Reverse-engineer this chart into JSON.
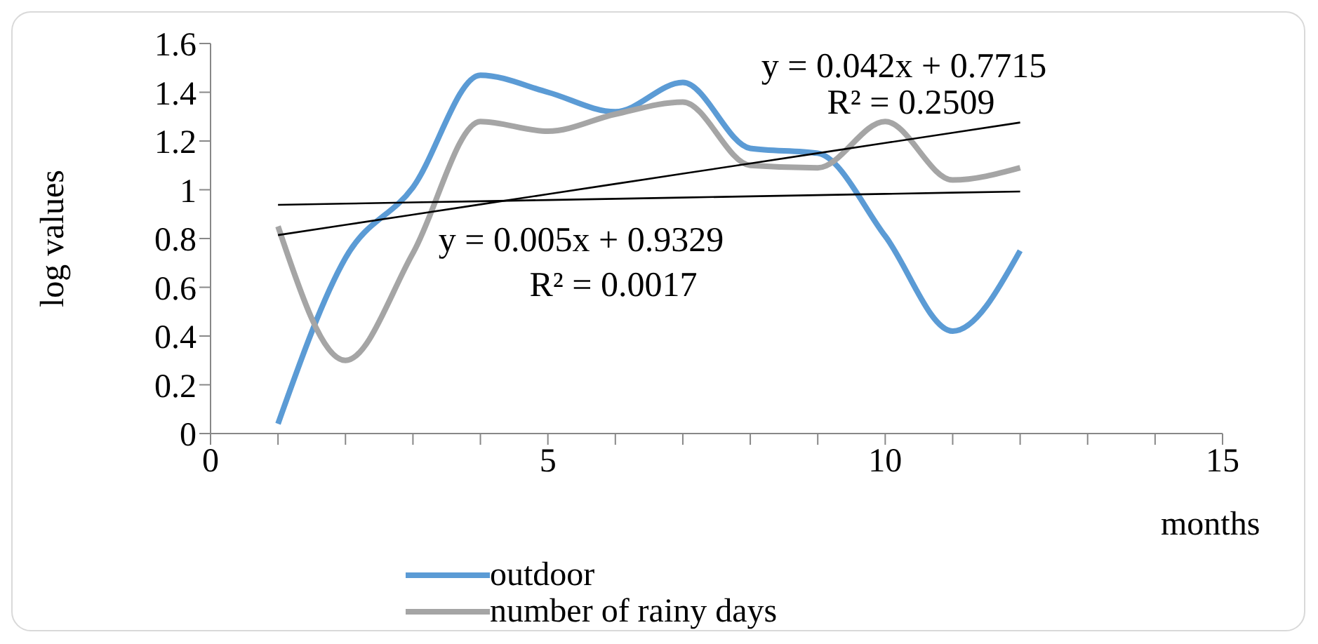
{
  "chart_data": {
    "type": "line",
    "xlabel": "months",
    "ylabel": "log values",
    "xlim": [
      0,
      15
    ],
    "xticks": [
      0,
      {
        "value": 1,
        "label": null
      },
      {
        "value": 2,
        "label": null
      },
      {
        "value": 3,
        "label": null
      },
      {
        "value": 4,
        "label": null
      },
      5,
      {
        "value": 6,
        "label": null
      },
      {
        "value": 7,
        "label": null
      },
      {
        "value": 8,
        "label": null
      },
      {
        "value": 9,
        "label": null
      },
      10,
      {
        "value": 11,
        "label": null
      },
      {
        "value": 12,
        "label": null
      },
      {
        "value": 13,
        "label": null
      },
      {
        "value": 14,
        "label": null
      },
      15
    ],
    "ylim": [
      0,
      1.6
    ],
    "yticks": [
      0,
      0.2,
      0.4,
      0.6,
      0.8,
      1,
      1.2,
      1.4,
      1.6
    ],
    "x": [
      1,
      2,
      3,
      4,
      5,
      6,
      7,
      8,
      9,
      10,
      11,
      12
    ],
    "series": [
      {
        "name": "outdoor",
        "color": "#5b9bd5",
        "values": [
          0.04,
          0.72,
          1.01,
          1.47,
          1.4,
          1.32,
          1.44,
          1.17,
          1.15,
          0.81,
          0.42,
          0.75
        ]
      },
      {
        "name": "number of rainy days",
        "color": "#a5a5a5",
        "values": [
          0.85,
          0.3,
          0.74,
          1.28,
          1.24,
          1.31,
          1.36,
          1.1,
          1.09,
          1.28,
          1.04,
          1.09
        ]
      },
      {
        "type": "line",
        "color": "#000000",
        "values": [
          0.938,
          0.943,
          0.948,
          0.953,
          0.958,
          0.963,
          0.968,
          0.973,
          0.978,
          0.983,
          0.988,
          0.993
        ]
      },
      {
        "type": "line",
        "color": "#000000",
        "values": [
          0.814,
          0.856,
          0.898,
          0.94,
          0.982,
          1.024,
          1.066,
          1.108,
          1.15,
          1.192,
          1.234,
          1.276
        ]
      }
    ],
    "annotations": [
      "y = 0.042x + 0.7715",
      "R² = 0.2509",
      "y = 0.005x + 0.9329",
      "R² = 0.0017"
    ],
    "legend": "bottom",
    "grid": false,
    "marker": "none",
    "line_style": "solid"
  }
}
